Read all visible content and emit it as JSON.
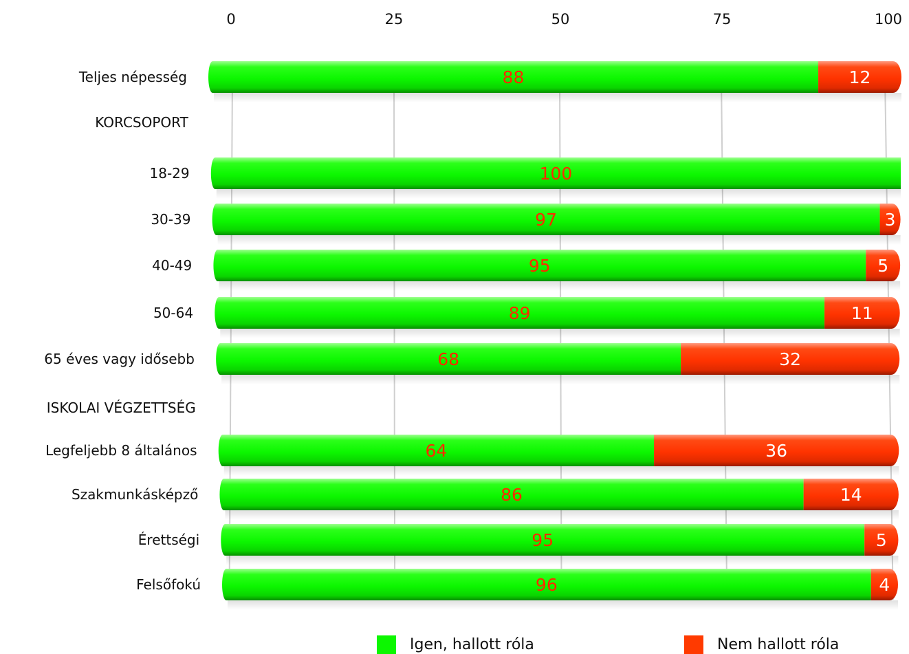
{
  "chart_data": {
    "type": "bar",
    "orientation": "horizontal",
    "stacked": true,
    "xlim": [
      0,
      100
    ],
    "x_ticks": [
      "0",
      "25",
      "50",
      "75",
      "100"
    ],
    "rows": [
      {
        "label": "Teljes népesség",
        "kind": "bar",
        "yes": 88,
        "no": 12
      },
      {
        "label": "KORCSOPORT",
        "kind": "header"
      },
      {
        "label": "18-29",
        "kind": "bar",
        "yes": 100,
        "no": 0
      },
      {
        "label": "30-39",
        "kind": "bar",
        "yes": 97,
        "no": 3
      },
      {
        "label": "40-49",
        "kind": "bar",
        "yes": 95,
        "no": 5
      },
      {
        "label": "50-64",
        "kind": "bar",
        "yes": 89,
        "no": 11
      },
      {
        "label": "65 éves vagy idősebb",
        "kind": "bar",
        "yes": 68,
        "no": 32
      },
      {
        "label": "ISKOLAI VÉGZETTSÉG",
        "kind": "header"
      },
      {
        "label": "Legfeljebb 8 általános",
        "kind": "bar",
        "yes": 64,
        "no": 36
      },
      {
        "label": "Szakmunkásképző",
        "kind": "bar",
        "yes": 86,
        "no": 14
      },
      {
        "label": "Érettségi",
        "kind": "bar",
        "yes": 95,
        "no": 5
      },
      {
        "label": "Felsőfokú",
        "kind": "bar",
        "yes": 96,
        "no": 4
      }
    ],
    "series": [
      {
        "name": "Igen, hallott róla",
        "color": "#0cf700"
      },
      {
        "name": "Nem hallott róla",
        "color": "#ff3a00"
      }
    ],
    "grid": true,
    "legend_position": "bottom"
  }
}
